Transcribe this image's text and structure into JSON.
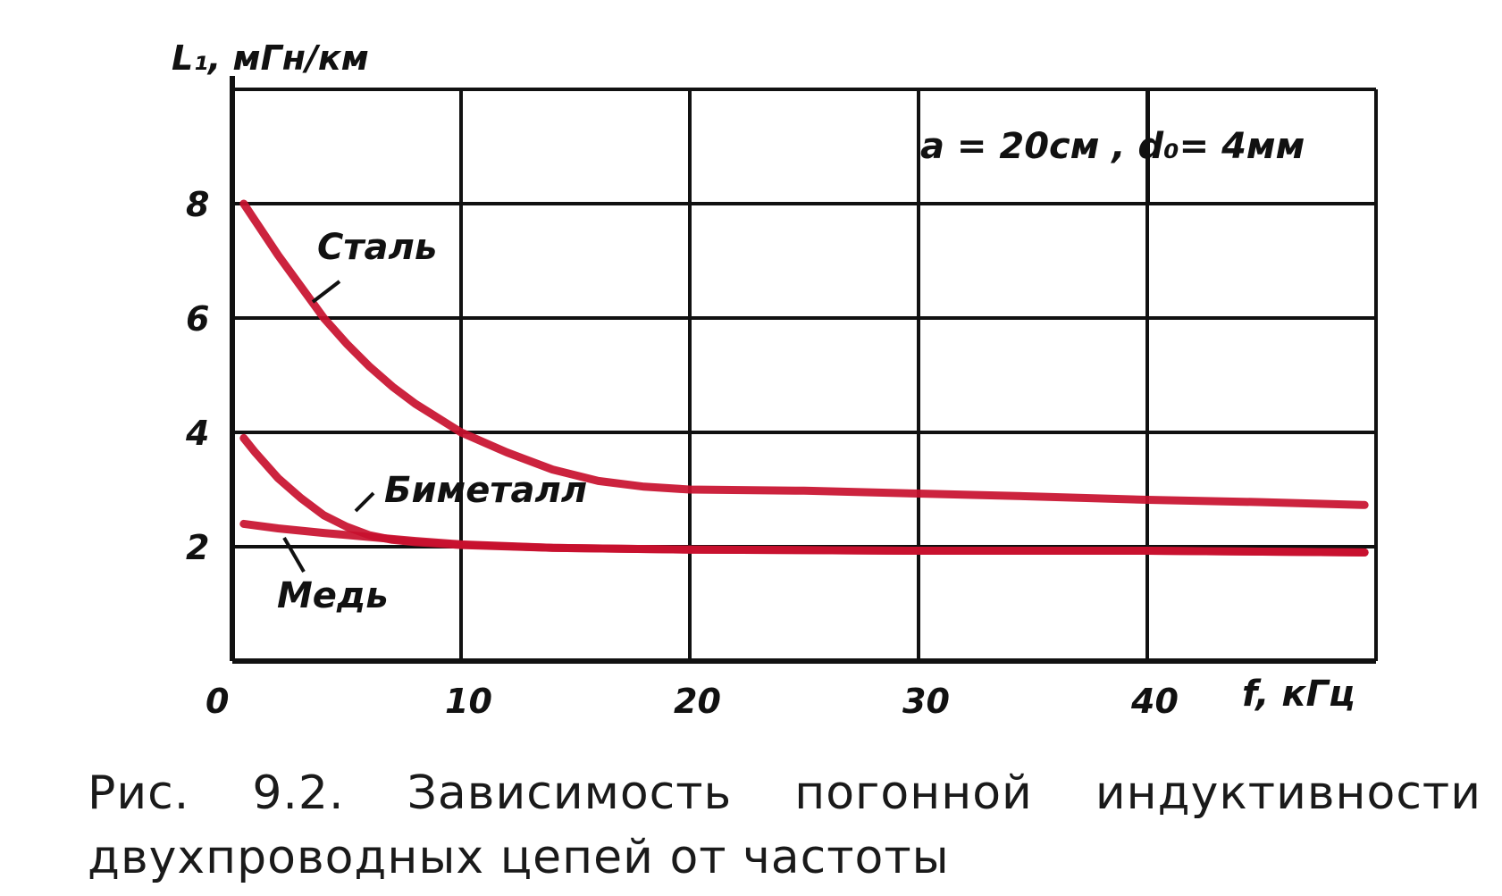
{
  "chart_data": {
    "type": "line",
    "ylabel": "L₁, мГн/км",
    "xlabel": "f, кГц",
    "xlim": [
      0,
      50
    ],
    "ylim": [
      0,
      10
    ],
    "x_ticks": [
      {
        "value": 0,
        "label": "0"
      },
      {
        "value": 10,
        "label": "10"
      },
      {
        "value": 20,
        "label": "20"
      },
      {
        "value": 30,
        "label": "30"
      },
      {
        "value": 40,
        "label": "40"
      }
    ],
    "y_ticks": [
      {
        "value": 2,
        "label": "2"
      },
      {
        "value": 4,
        "label": "4"
      },
      {
        "value": 6,
        "label": "6"
      },
      {
        "value": 8,
        "label": "8"
      }
    ],
    "grid": true,
    "annotation": "a = 20см ,   d₀= 4мм",
    "line_color": "#c8102e",
    "series": [
      {
        "name": "Сталь",
        "points": [
          [
            0.5,
            8.0
          ],
          [
            1,
            7.7
          ],
          [
            2,
            7.1
          ],
          [
            3,
            6.55
          ],
          [
            4,
            6.0
          ],
          [
            5,
            5.55
          ],
          [
            6,
            5.15
          ],
          [
            7,
            4.8
          ],
          [
            8,
            4.5
          ],
          [
            10,
            4.0
          ],
          [
            12,
            3.65
          ],
          [
            14,
            3.35
          ],
          [
            16,
            3.15
          ],
          [
            18,
            3.05
          ],
          [
            20,
            3.0
          ],
          [
            25,
            2.98
          ],
          [
            30,
            2.93
          ],
          [
            35,
            2.88
          ],
          [
            40,
            2.82
          ],
          [
            45,
            2.78
          ],
          [
            49.5,
            2.73
          ]
        ]
      },
      {
        "name": "Биметалл",
        "points": [
          [
            0.5,
            3.9
          ],
          [
            1,
            3.65
          ],
          [
            2,
            3.2
          ],
          [
            3,
            2.85
          ],
          [
            4,
            2.55
          ],
          [
            5,
            2.35
          ],
          [
            6,
            2.2
          ],
          [
            7,
            2.12
          ],
          [
            8,
            2.08
          ],
          [
            10,
            2.03
          ],
          [
            14,
            1.98
          ],
          [
            20,
            1.95
          ],
          [
            30,
            1.93
          ],
          [
            40,
            1.93
          ],
          [
            49.5,
            1.9
          ]
        ]
      },
      {
        "name": "Медь",
        "points": [
          [
            0.5,
            2.4
          ],
          [
            2,
            2.32
          ],
          [
            4,
            2.24
          ],
          [
            6,
            2.17
          ],
          [
            8,
            2.1
          ],
          [
            10,
            2.04
          ],
          [
            14,
            1.98
          ],
          [
            20,
            1.95
          ],
          [
            30,
            1.93
          ],
          [
            40,
            1.93
          ],
          [
            49.5,
            1.9
          ]
        ]
      }
    ]
  },
  "caption": {
    "line1": "Рис. 9.2. Зависимость погонной индуктивности",
    "line2": "двухпроводных цепей от частоты"
  }
}
